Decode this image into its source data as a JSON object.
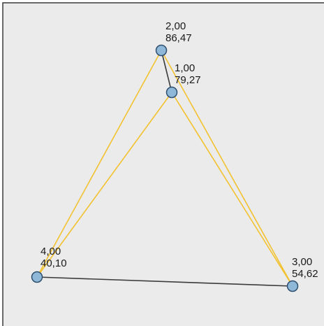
{
  "diagram": {
    "background_color": "#ebebeb",
    "border_color": "#3a3a3a",
    "node_fill": "#8fb8d8",
    "node_stroke": "#2f4f6f",
    "nodes": [
      {
        "id": "n1",
        "label": "1,00",
        "value": "79,27"
      },
      {
        "id": "n2",
        "label": "2,00",
        "value": "86,47"
      },
      {
        "id": "n3",
        "label": "3,00",
        "value": "54,62"
      },
      {
        "id": "n4",
        "label": "4,00",
        "value": "40,10"
      }
    ],
    "edges": [
      {
        "from": "n2",
        "to": "n1",
        "color": "#3c3c3c"
      },
      {
        "from": "n4",
        "to": "n3",
        "color": "#3c3c3c"
      },
      {
        "from": "n2",
        "to": "n4",
        "color": "#f2c230"
      },
      {
        "from": "n1",
        "to": "n4",
        "color": "#f2c230"
      },
      {
        "from": "n2",
        "to": "n3",
        "color": "#f2c230"
      },
      {
        "from": "n1",
        "to": "n3",
        "color": "#f2c230"
      }
    ]
  }
}
